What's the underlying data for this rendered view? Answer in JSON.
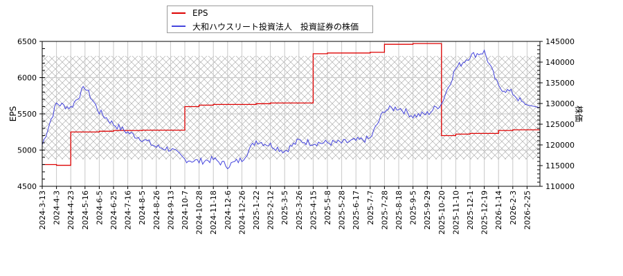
{
  "legend": {
    "items": [
      {
        "label": "EPS",
        "color": "#dd0000"
      },
      {
        "label": "大和ハウスリート投資法人　投資証券の株価",
        "color": "#4444dd"
      }
    ]
  },
  "axes": {
    "left_title": "EPS",
    "right_title": "株価",
    "left_ticks": [
      "6500",
      "6000",
      "5500",
      "5000",
      "4500"
    ],
    "right_ticks": [
      "145000",
      "140000",
      "135000",
      "130000",
      "125000",
      "120000",
      "115000",
      "110000"
    ],
    "x_ticks": [
      "2024-3-13",
      "2024-4-3",
      "2024-4-23",
      "2024-5-16",
      "2024-6-5",
      "2024-6-25",
      "2024-7-16",
      "2024-8-5",
      "2024-8-26",
      "2024-9-13",
      "2024-10-7",
      "2024-10-28",
      "2024-11-18",
      "2024-12-6",
      "2024-12-26",
      "2025-1-22",
      "2025-2-12",
      "2025-3-5",
      "2025-3-26",
      "2025-4-15",
      "2025-5-8",
      "2025-5-28",
      "2025-6-17",
      "2025-7-7",
      "2025-7-28",
      "2025-8-18",
      "2025-9-5",
      "2025-9-29",
      "2025-10-20",
      "2025-11-10",
      "2025-12-1",
      "2025-12-19",
      "2026-1-14",
      "2026-2-3",
      "2026-2-25"
    ]
  },
  "chart_data": {
    "type": "line",
    "title": "",
    "xlabel": "",
    "ylabel": "EPS",
    "ylabel_right": "株価",
    "ylim": [
      4500,
      6500
    ],
    "ylim_right": [
      110000,
      145000
    ],
    "grid": true,
    "legend_position": "top",
    "shaded_band_right_axis": [
      116500,
      141500
    ],
    "x": [
      "2024-3-13",
      "2024-4-3",
      "2024-4-23",
      "2024-5-16",
      "2024-6-5",
      "2024-6-25",
      "2024-7-16",
      "2024-8-5",
      "2024-8-26",
      "2024-9-13",
      "2024-10-7",
      "2024-10-28",
      "2024-11-18",
      "2024-12-6",
      "2024-12-26",
      "2025-1-22",
      "2025-2-12",
      "2025-3-5",
      "2025-3-26",
      "2025-4-15",
      "2025-5-8",
      "2025-5-28",
      "2025-6-17",
      "2025-7-7",
      "2025-7-28",
      "2025-8-18",
      "2025-9-5",
      "2025-9-29",
      "2025-10-20",
      "2025-11-10",
      "2025-12-1",
      "2025-12-19",
      "2026-1-14",
      "2026-2-3",
      "2026-2-25"
    ],
    "series": [
      {
        "name": "EPS",
        "axis": "left",
        "color": "#dd0000",
        "values": [
          4800,
          4790,
          5250,
          5250,
          5260,
          5270,
          5270,
          5275,
          5275,
          5275,
          5600,
          5620,
          5630,
          5630,
          5630,
          5640,
          5650,
          5650,
          5650,
          6330,
          6340,
          6340,
          6340,
          6350,
          6460,
          6460,
          6470,
          6470,
          5200,
          5220,
          5230,
          5230,
          5270,
          5280,
          5280
        ]
      },
      {
        "name": "大和ハウスリート投資法人　投資証券の株価",
        "axis": "right",
        "color": "#4444dd",
        "values": [
          120000,
          130000,
          129000,
          134000,
          128000,
          125000,
          123000,
          121500,
          119500,
          119000,
          116500,
          116000,
          116500,
          115000,
          116500,
          121000,
          120000,
          118500,
          121000,
          120500,
          120500,
          120500,
          121000,
          121500,
          128500,
          129000,
          127000,
          127500,
          130000,
          138500,
          141500,
          142500,
          134000,
          132500,
          129000
        ]
      }
    ]
  }
}
